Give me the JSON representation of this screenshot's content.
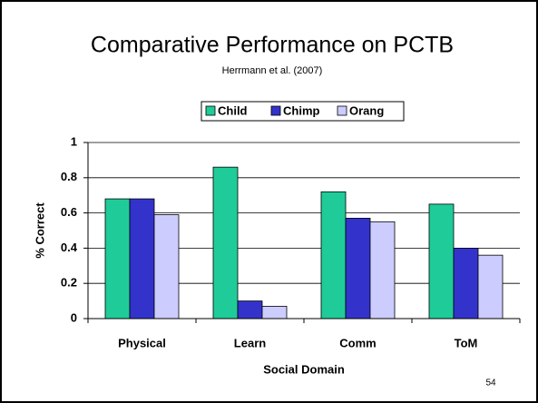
{
  "chart_data": {
    "type": "bar",
    "title": "Comparative Performance on PCTB",
    "subtitle": "Herrmann et al. (2007)",
    "x_label": "Social Domain",
    "y_label": "% Correct",
    "categories": [
      "Physical",
      "Learn",
      "Comm",
      "ToM"
    ],
    "series": [
      {
        "name": "Child",
        "color": "#1fcc99",
        "values": [
          0.68,
          0.86,
          0.72,
          0.65
        ]
      },
      {
        "name": "Chimp",
        "color": "#3333cc",
        "values": [
          0.68,
          0.1,
          0.57,
          0.4
        ]
      },
      {
        "name": "Orang",
        "color": "#ccccff",
        "values": [
          0.59,
          0.07,
          0.55,
          0.36
        ]
      }
    ],
    "ylim": [
      0,
      1
    ],
    "yticks": [
      0,
      0.2,
      0.4,
      0.6,
      0.8,
      1
    ],
    "grid": true,
    "legend": "top"
  },
  "page_number": "54"
}
